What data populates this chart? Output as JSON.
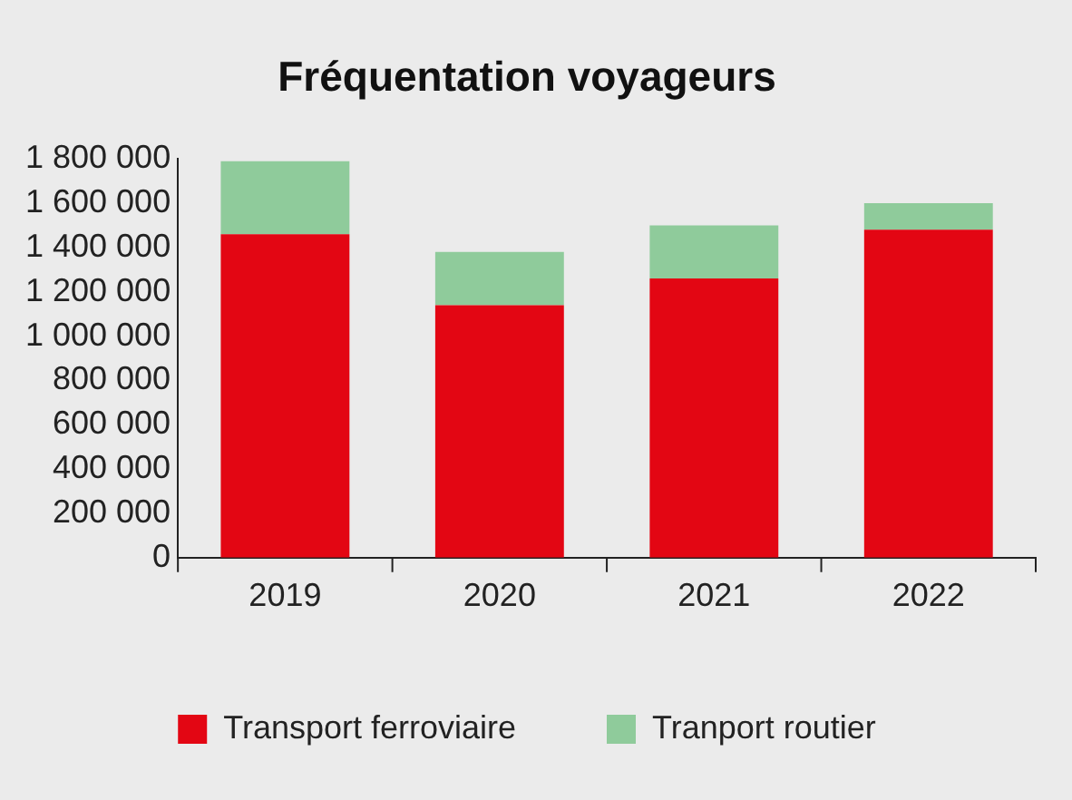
{
  "chart_data": {
    "type": "bar",
    "title": "Fréquentation voyageurs",
    "categories": [
      "2019",
      "2020",
      "2021",
      "2022"
    ],
    "stacked": true,
    "series": [
      {
        "name": "Transport ferroviaire",
        "color": "#e30613",
        "values": [
          1460000,
          1140000,
          1260000,
          1480000
        ]
      },
      {
        "name": "Tranport routier",
        "color": "#8fcb9b",
        "values": [
          330000,
          240000,
          240000,
          120000
        ]
      }
    ],
    "ylim": [
      0,
      1800000
    ],
    "yticks": [
      0,
      {
        "value": 200000,
        "label": "200 000"
      },
      {
        "value": 400000,
        "label": "400 000"
      },
      {
        "value": 600000,
        "label": "600 000"
      },
      {
        "value": 800000,
        "label": "800 000"
      },
      {
        "value": 1000000,
        "label": "1 000 000"
      },
      {
        "value": 1200000,
        "label": "1 200 000"
      },
      {
        "value": 1400000,
        "label": "1 400 000"
      },
      {
        "value": 1600000,
        "label": "1 600 000"
      },
      {
        "value": 1800000,
        "label": "1 800 000"
      }
    ],
    "grid": false,
    "legend": "bottom"
  }
}
